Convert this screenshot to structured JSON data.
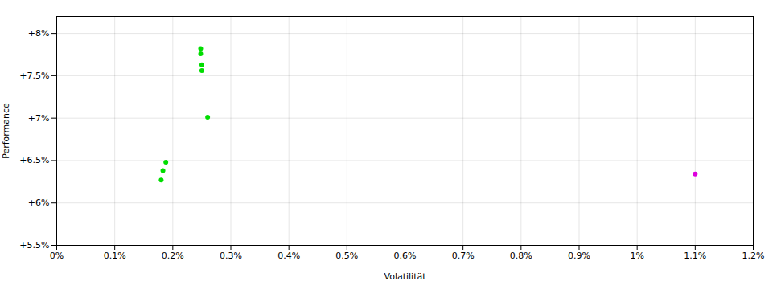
{
  "chart_data": {
    "type": "scatter",
    "xlabel": "Volatilität",
    "ylabel": "Performance",
    "xlim": [
      0.0,
      0.012
    ],
    "ylim": [
      0.055,
      0.082
    ],
    "xticks": [
      {
        "value": 0.0,
        "label": "0%"
      },
      {
        "value": 0.001,
        "label": "0.1%"
      },
      {
        "value": 0.002,
        "label": "0.2%"
      },
      {
        "value": 0.003,
        "label": "0.3%"
      },
      {
        "value": 0.004,
        "label": "0.4%"
      },
      {
        "value": 0.005,
        "label": "0.5%"
      },
      {
        "value": 0.006,
        "label": "0.6%"
      },
      {
        "value": 0.007,
        "label": "0.7%"
      },
      {
        "value": 0.008,
        "label": "0.8%"
      },
      {
        "value": 0.009,
        "label": "0.9%"
      },
      {
        "value": 0.01,
        "label": "1%"
      },
      {
        "value": 0.011,
        "label": "1.1%"
      },
      {
        "value": 0.012,
        "label": "1.2%"
      }
    ],
    "yticks": [
      {
        "value": 0.055,
        "label": "+5.5%"
      },
      {
        "value": 0.06,
        "label": "+6%"
      },
      {
        "value": 0.065,
        "label": "+6.5%"
      },
      {
        "value": 0.07,
        "label": "+7%"
      },
      {
        "value": 0.075,
        "label": "+7.5%"
      },
      {
        "value": 0.08,
        "label": "+8%"
      }
    ],
    "grid": true,
    "series": [
      {
        "color": "#00dd00",
        "x": [
          0.00248,
          0.00248,
          0.0025,
          0.0025,
          0.0026,
          0.00188,
          0.00183,
          0.0018
        ],
        "values": [
          0.0782,
          0.0776,
          0.0763,
          0.0756,
          0.0701,
          0.0648,
          0.0638,
          0.0627
        ]
      },
      {
        "color": "#dd00dd",
        "x": [
          0.011
        ],
        "values": [
          0.0634
        ]
      }
    ]
  }
}
